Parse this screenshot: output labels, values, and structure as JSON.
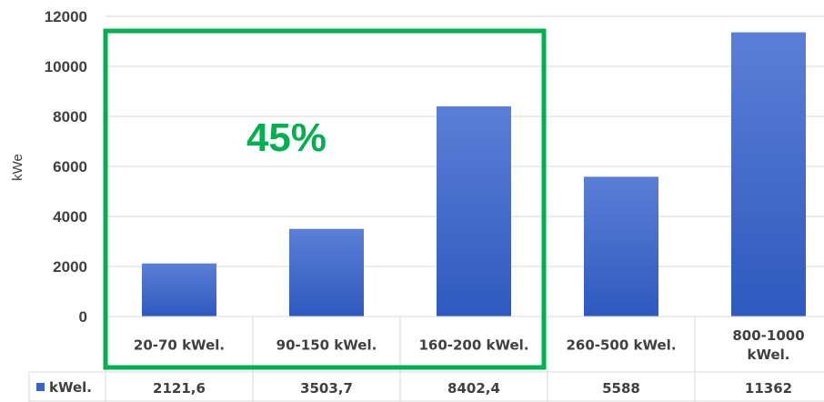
{
  "chart_data": {
    "type": "bar",
    "categories": [
      [
        "20-70 kWel."
      ],
      [
        "90-150 kWel."
      ],
      [
        "160-200 kWel."
      ],
      [
        "260-500 kWel."
      ],
      [
        "800-1000",
        "kWel."
      ]
    ],
    "series": [
      {
        "name": "kWel.",
        "values": [
          2121.6,
          3503.7,
          8402.4,
          5588,
          11362
        ]
      }
    ],
    "value_labels": [
      "2121,6",
      "3503,7",
      "8402,4",
      "5588",
      "11362"
    ],
    "ylabel": "kWe",
    "ylim": [
      0,
      12000
    ],
    "yticks": [
      0,
      2000,
      4000,
      6000,
      8000,
      10000,
      12000
    ],
    "grid": true,
    "data_table": true,
    "highlight": {
      "categories": [
        0,
        1,
        2
      ],
      "label": "45%",
      "color": "#00b050"
    },
    "colors": {
      "bar_top": "#5a7fd6",
      "bar_bottom": "#2e59bf",
      "legend_key": "#3a63c8",
      "grid": "#d9d9d9",
      "text": "#404040"
    }
  }
}
